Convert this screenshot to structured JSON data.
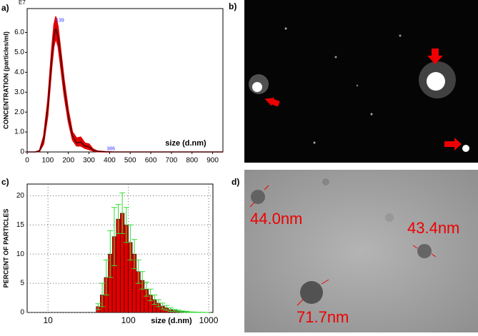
{
  "panel_labels": [
    "a)",
    "b)",
    "c)",
    "d)"
  ],
  "chart_data": [
    {
      "type": "line",
      "xlabel": "size (d.nm)",
      "ylabel": "CONCENTRATION (particles/ml)",
      "exponent": "E7",
      "x": [
        0,
        40,
        60,
        80,
        100,
        120,
        130,
        139,
        150,
        160,
        180,
        200,
        220,
        240,
        260,
        280,
        300,
        320,
        340,
        380,
        420,
        500,
        600,
        700,
        800,
        900,
        950
      ],
      "series": [
        {
          "color": "#000000",
          "values": [
            0,
            0,
            0.05,
            0.6,
            2.2,
            4.8,
            5.8,
            6.2,
            5.8,
            5.0,
            3.2,
            1.8,
            0.8,
            0.45,
            0.5,
            0.3,
            0.25,
            0.1,
            0.03,
            0.01,
            0,
            0,
            0,
            0,
            0,
            0,
            0
          ]
        }
      ],
      "band_color": "#e00000",
      "band_upper": [
        0,
        0,
        0.08,
        0.8,
        2.6,
        5.3,
        6.4,
        6.8,
        6.3,
        5.4,
        3.6,
        2.1,
        1.0,
        0.7,
        0.75,
        0.45,
        0.4,
        0.15,
        0.05,
        0.02,
        0,
        0,
        0,
        0,
        0,
        0,
        0
      ],
      "band_lower": [
        0,
        0,
        0.03,
        0.4,
        1.8,
        4.3,
        5.3,
        5.7,
        5.3,
        4.5,
        2.8,
        1.5,
        0.6,
        0.3,
        0.3,
        0.18,
        0.12,
        0.05,
        0.01,
        0,
        0,
        0,
        0,
        0,
        0,
        0,
        0
      ],
      "annotations": [
        {
          "text": "139",
          "x": 139,
          "y": 6.6
        },
        {
          "text": "386",
          "x": 386,
          "y": 0.15
        }
      ],
      "xlim": [
        0,
        950
      ],
      "xticks": [
        0,
        100,
        200,
        300,
        400,
        500,
        600,
        700,
        800,
        900
      ],
      "ylim": [
        0,
        7.2
      ],
      "yticks": [
        0,
        {
          "value": 1,
          "label": "1.0"
        },
        {
          "value": 2,
          "label": "2.0"
        },
        {
          "value": 3,
          "label": "3.0"
        },
        {
          "value": 4,
          "label": "4.0"
        },
        {
          "value": 5,
          "label": "5.0"
        },
        {
          "value": 6,
          "label": "6.0"
        }
      ],
      "grid": false
    },
    {
      "type": "histogram",
      "xlabel": "size (d.nm)",
      "ylabel": "PERCENT OF PARTICLES",
      "log_x": true,
      "grid": true,
      "color": "#e00000",
      "error_color": "#33dd33",
      "bins": [
        39.8,
        44.7,
        50.1,
        56.2,
        63.1,
        70.8,
        79.4,
        89.1,
        100,
        112,
        126,
        141,
        158,
        178,
        200,
        224,
        251,
        282,
        316,
        355,
        398,
        447,
        501,
        562,
        631,
        708,
        794,
        891,
        1000
      ],
      "values": [
        1,
        3,
        6,
        10,
        13,
        16,
        17,
        15,
        12,
        10,
        7,
        5.5,
        4,
        3,
        2.2,
        1.6,
        1.1,
        0.8,
        0.5,
        0.35,
        0.25,
        0.15,
        0.1,
        0.05,
        0.03,
        0.02,
        0.01,
        0
      ],
      "errors": [
        0.5,
        2,
        3,
        4,
        5,
        2.5,
        3.5,
        3,
        3,
        2.5,
        2,
        1.5,
        1.2,
        1,
        0.8,
        0.6,
        0.5,
        0.4,
        0.3,
        0.2,
        0.15,
        0.1,
        0.1,
        0.05,
        0.05,
        0.03,
        0.02,
        0.01
      ],
      "xlim": [
        5.5,
        1130
      ],
      "xticks": [
        10,
        100,
        1000
      ],
      "ylim": [
        0,
        22
      ],
      "yticks": [
        0,
        5,
        10,
        15,
        20
      ]
    }
  ],
  "image_d": {
    "labels": [
      "44.0nm",
      "43.4nm",
      "71.7nm"
    ]
  }
}
